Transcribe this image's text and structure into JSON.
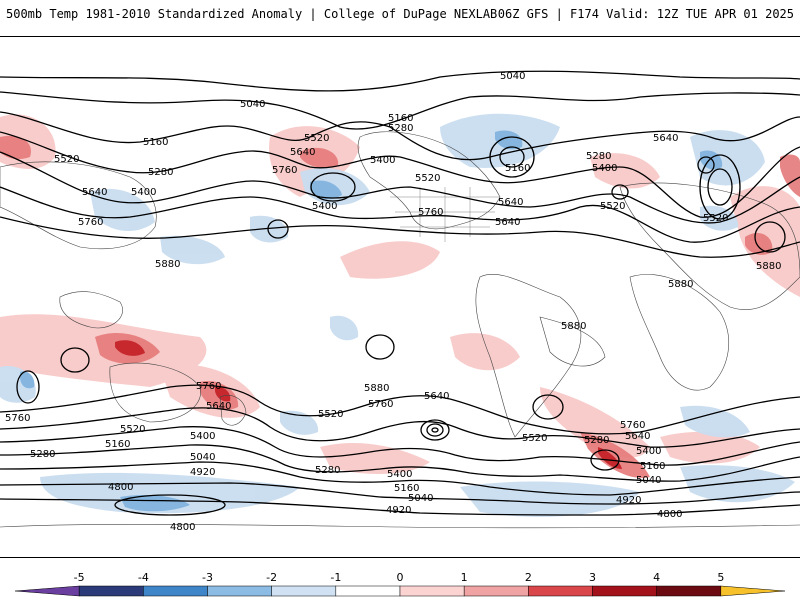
{
  "header": {
    "title_left": "500mb Temp 1981-2010 Standardized Anomaly | College of DuPage NEXLAB",
    "title_right": "06Z GFS | F174 Valid: 12Z TUE APR 01 2025"
  },
  "colorbar": {
    "tick_labels": [
      "-5",
      "-4",
      "-3",
      "-2",
      "-1",
      "0",
      "1",
      "2",
      "3",
      "4",
      "5"
    ],
    "colors": [
      "#6a3fa0",
      "#2b3a78",
      "#3f86c8",
      "#8cbbe3",
      "#cfe1f2",
      "#ffffff",
      "#fbd4d2",
      "#f0a3a3",
      "#d9474b",
      "#a3121b",
      "#6b0a10",
      "#f6c12a"
    ]
  },
  "contours": {
    "labels": [
      "5040",
      "5040",
      "5160",
      "5280",
      "5520",
      "5520",
      "5640",
      "5400",
      "5160",
      "5640",
      "5280",
      "5640",
      "5520",
      "5400",
      "5280",
      "5160",
      "5400",
      "5640",
      "5760",
      "5400",
      "5520",
      "5520",
      "5760",
      "5640",
      "5760",
      "5880",
      "5880",
      "5880",
      "5880",
      "5760",
      "5640",
      "5880",
      "5640",
      "5520",
      "5760",
      "5520",
      "5400",
      "5160",
      "5280",
      "5040",
      "4920",
      "4800",
      "4800",
      "5280",
      "5400",
      "5160",
      "5040",
      "4920",
      "5760",
      "5640",
      "5280",
      "5400",
      "5520",
      "5160",
      "5040",
      "4920",
      "4800",
      "5760"
    ]
  }
}
